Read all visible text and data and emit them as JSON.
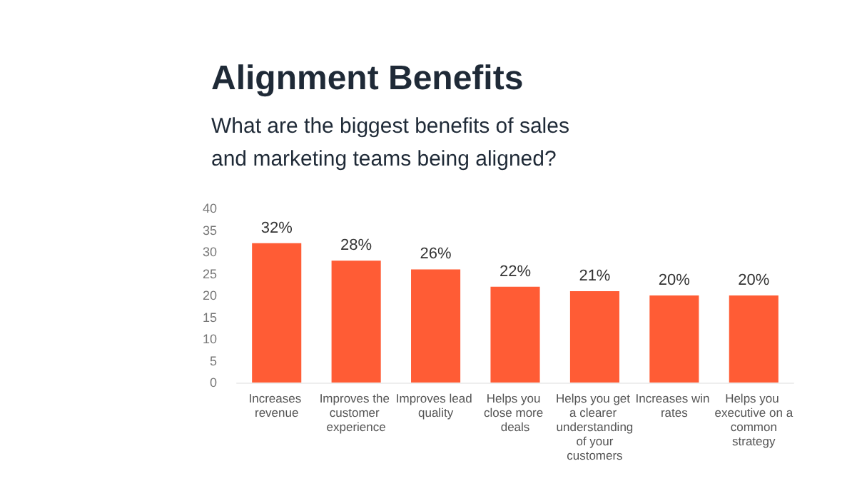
{
  "chart_data": {
    "type": "bar",
    "title": "Alignment Benefits",
    "subtitle": "What are the biggest benefits of sales and marketing teams being aligned?",
    "categories": [
      "Increases revenue",
      "Improves the customer experience",
      "Improves lead quality",
      "Helps you close more deals",
      "Helps you get a clearer understanding of your customers",
      "Increases win rates",
      "Helps you executive on a common strategy"
    ],
    "values": [
      32,
      28,
      26,
      22,
      21,
      20,
      20
    ],
    "value_labels": [
      "32%",
      "28%",
      "26%",
      "22%",
      "21%",
      "20%",
      "20%"
    ],
    "color": "#ff5c35",
    "ylim": [
      0,
      40
    ],
    "yticks": [
      0,
      5,
      10,
      15,
      20,
      25,
      30,
      35,
      40
    ],
    "grid": false
  }
}
